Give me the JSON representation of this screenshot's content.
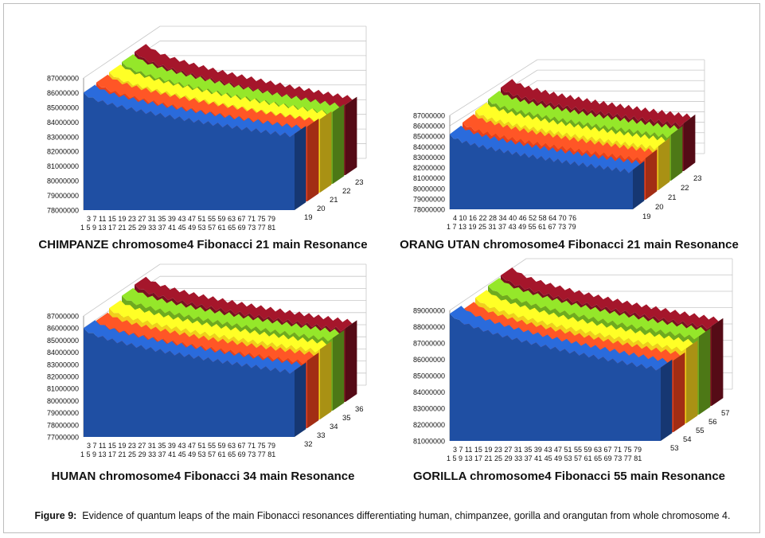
{
  "caption": {
    "label": "Figure 9:",
    "text": "Evidence of quantum leaps of the main Fibonacci resonances differentiating human, chimpanzee, gorilla and orangutan from whole chromosome 4."
  },
  "colors": [
    "#1f4fa3",
    "#e8401c",
    "#f1cf1c",
    "#6eab1f",
    "#7a1020"
  ],
  "chart_data": [
    {
      "type": "area",
      "title": "CHIMPANZE chromosome4 Fibonacci 21 main Resonance",
      "y_ticks": [
        "87000000",
        "86000000",
        "85000000",
        "84000000",
        "83000000",
        "82000000",
        "81000000",
        "80000000",
        "79000000",
        "78000000"
      ],
      "ylim": [
        78000000,
        87000000
      ],
      "x_ticks_row1": "3  7  11 15 19 23 27 31 35 39 43 47 51 55 59 63 67 71 75 79",
      "x_ticks_row2": "1  5  9  13 17 21 25 29 33 37 41 45 49 53 57 61 65 69 73 77 81",
      "series": [
        {
          "name": "19",
          "start": 86000000,
          "end": 83200000
        },
        {
          "name": "20",
          "start": 86100000,
          "end": 83100000
        },
        {
          "name": "21",
          "start": 86200000,
          "end": 83000000
        },
        {
          "name": "22",
          "start": 86300000,
          "end": 82900000
        },
        {
          "name": "23",
          "start": 86400000,
          "end": 82800000
        }
      ]
    },
    {
      "type": "area",
      "title": "ORANG UTAN chromosome4 Fibonacci 21 main Resonance",
      "y_ticks": [
        "87000000",
        "86000000",
        "85000000",
        "84000000",
        "83000000",
        "82000000",
        "81000000",
        "80000000",
        "79000000",
        "78000000"
      ],
      "ylim": [
        78000000,
        87000000
      ],
      "x_ticks_row1": "4  10 16 22 28 34 40 46 52 58 64 70 76",
      "x_ticks_row2": "1  7  13 19 25 31 37 43 49 55 61 67 73 79",
      "series": [
        {
          "name": "19",
          "start": 85200000,
          "end": 81800000
        },
        {
          "name": "20",
          "start": 85400000,
          "end": 82000000
        },
        {
          "name": "21",
          "start": 85600000,
          "end": 82200000
        },
        {
          "name": "22",
          "start": 85800000,
          "end": 82400000
        },
        {
          "name": "23",
          "start": 86000000,
          "end": 82600000
        }
      ]
    },
    {
      "type": "area",
      "title": "HUMAN chromosome4 Fibonacci 34 main Resonance",
      "y_ticks": [
        "87000000",
        "86000000",
        "85000000",
        "84000000",
        "83000000",
        "82000000",
        "81000000",
        "80000000",
        "79000000",
        "78000000",
        "77000000"
      ],
      "ylim": [
        77000000,
        87000000
      ],
      "x_ticks_row1": "3  7  11 15 19 23 27 31 35 39 43 47 51 55 59 63 67 71 75 79",
      "x_ticks_row2": "1  5  9  13 17 21 25 29 33 37 41 45 49 53 57 61 65 69 73 77 81",
      "series": [
        {
          "name": "32",
          "start": 86000000,
          "end": 82500000
        },
        {
          "name": "33",
          "start": 85900000,
          "end": 82600000
        },
        {
          "name": "34",
          "start": 86200000,
          "end": 82800000
        },
        {
          "name": "35",
          "start": 86500000,
          "end": 83000000
        },
        {
          "name": "36",
          "start": 86700000,
          "end": 83100000
        }
      ]
    },
    {
      "type": "area",
      "title": "GORILLA chromosome4  Fibonacci 55 main Resonance",
      "y_ticks": [
        "89000000",
        "88000000",
        "87000000",
        "86000000",
        "85000000",
        "84000000",
        "83000000",
        "82000000",
        "81000000"
      ],
      "ylim": [
        81000000,
        89000000
      ],
      "x_ticks_row1": "3  7  11 15 19 23 27 31 35 39 43 47 51 55 59 63 67 71 75 79",
      "x_ticks_row2": "1  5  9  13 17 21 25 29 33 37 41 45 49 53 57 61 65 69 73 77 81",
      "series": [
        {
          "name": "53",
          "start": 88800000,
          "end": 85500000
        },
        {
          "name": "54",
          "start": 88500000,
          "end": 85400000
        },
        {
          "name": "55",
          "start": 88700000,
          "end": 85600000
        },
        {
          "name": "56",
          "start": 88900000,
          "end": 85800000
        },
        {
          "name": "57",
          "start": 89000000,
          "end": 85900000
        }
      ]
    }
  ]
}
